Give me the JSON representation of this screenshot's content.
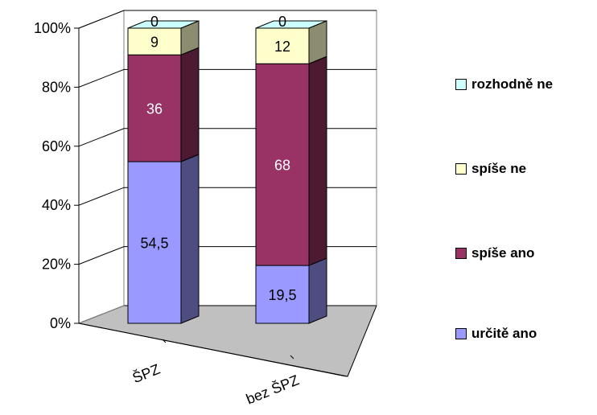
{
  "chart_data": {
    "type": "bar",
    "stacked": true,
    "percent_stacked": true,
    "three_d": true,
    "categories": [
      "ŠPZ",
      "bez ŠPZ"
    ],
    "series": [
      {
        "name": "určitě ano",
        "values": [
          54.5,
          19.5
        ],
        "color": "#9999FF",
        "label_color": "#000000",
        "labels": [
          "54,5",
          "19,5"
        ]
      },
      {
        "name": "spíše ano",
        "values": [
          36,
          68
        ],
        "color": "#993366",
        "label_color": "#FFFFFF",
        "labels": [
          "36",
          "68"
        ]
      },
      {
        "name": "spíše ne",
        "values": [
          9,
          12
        ],
        "color": "#FFFFCC",
        "label_color": "#000000",
        "labels": [
          "9",
          "12"
        ]
      },
      {
        "name": "rozhodně ne",
        "values": [
          0,
          0
        ],
        "color": "#CCFFFF",
        "label_color": "#000000",
        "labels": [
          "0",
          "0"
        ]
      }
    ],
    "yticks": [
      "0%",
      "20%",
      "40%",
      "60%",
      "80%",
      "100%"
    ],
    "ylim": [
      0,
      100
    ],
    "grid": true,
    "legend_position": "right",
    "floor_color": "#C0C0C0"
  }
}
